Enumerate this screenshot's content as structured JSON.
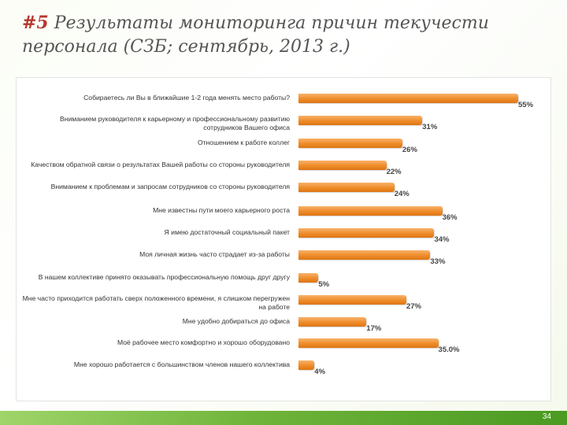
{
  "slide": {
    "title_number": "#5",
    "title_text": " Результаты мониторинга причин текучести персонала (СЗБ; сентябрь, 2013 г.)",
    "page_number": "34"
  },
  "chart_data": {
    "type": "bar",
    "orientation": "horizontal",
    "title": "",
    "xlabel": "",
    "ylabel": "",
    "xlim": [
      0,
      55
    ],
    "categories": [
      "Собираетесь ли Вы в ближайшие 1-2 года менять место работы?",
      "Вниманием руководителя к карьерному и профессиональному развитию сотрудников Вашего офиса",
      "Отношением к работе коллег",
      "Качеством обратной связи о результатах Вашей работы со стороны руководителя",
      "Вниманием к проблемам и запросам сотрудников со стороны руководителя",
      "Мне известны пути моего карьерного роста",
      "Я имею достаточный социальный пакет",
      "Моя личная жизнь часто страдает из-за работы",
      "В нашем коллективе принято оказывать профессиональную помощь друг другу",
      "Мне часто приходится работать сверх положенного времени, я слишком перегружен на работе",
      "Мне удобно добираться до офиса",
      "Моё рабочее место комфортно и хорошо оборудовано",
      "Мне хорошо работается с большинством членов нашего коллектива"
    ],
    "values": [
      55,
      31,
      26,
      22,
      24,
      36,
      34,
      33,
      5,
      27,
      17,
      35,
      4
    ],
    "value_labels": [
      "55%",
      "31%",
      "26%",
      "22%",
      "24%",
      "36%",
      "34%",
      "33%",
      "5%",
      "27%",
      "17%",
      "35.0%",
      "4%"
    ],
    "bar_color": "#ef8c2a"
  }
}
